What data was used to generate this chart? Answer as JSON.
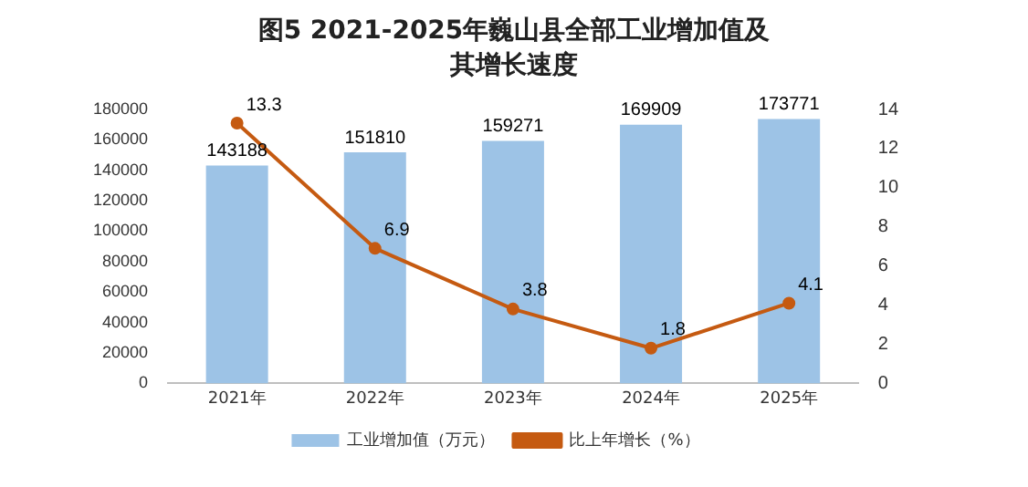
{
  "chart_data": {
    "type": "bar",
    "title": "图5  2021-2025年巍山县全部工业增加值及其增长速度",
    "categories": [
      "2021年",
      "2022年",
      "2023年",
      "2024年",
      "2025年"
    ],
    "series": [
      {
        "name": "工业增加值（万元）",
        "color": "#9dc3e6",
        "values": [
          143188,
          151810,
          159271,
          169909,
          173771
        ]
      },
      {
        "name": "比上年增长（%）",
        "type": "line",
        "axis": "y2",
        "color": "#c55a11",
        "values": [
          13.3,
          6.9,
          3.8,
          1.8,
          4.1
        ]
      }
    ],
    "ylim": [
      0,
      180000
    ],
    "yticks": [
      0,
      20000,
      40000,
      60000,
      80000,
      100000,
      120000,
      140000,
      160000,
      180000
    ],
    "y2lim": [
      0,
      14
    ],
    "y2ticks": [
      0,
      2,
      4,
      6,
      8,
      10,
      12,
      14
    ],
    "data_labels": true,
    "legend": "bottom",
    "grid": false,
    "marker": "circle",
    "line_style": "solid"
  }
}
